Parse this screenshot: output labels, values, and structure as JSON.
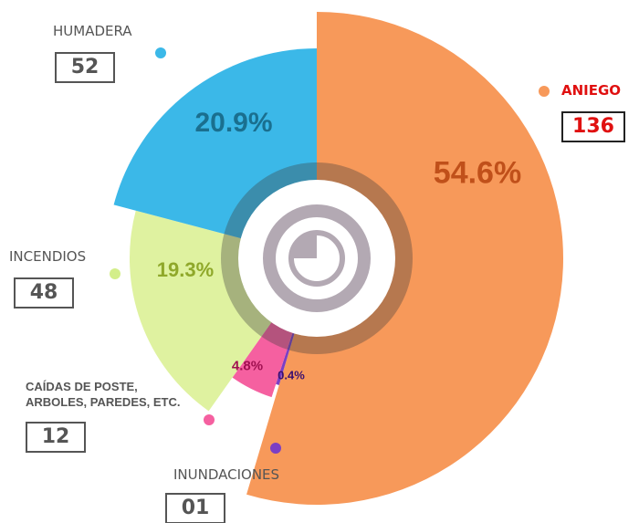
{
  "chart_data": {
    "type": "pie",
    "categories": [
      "ANIEGO",
      "INUNDACIONES",
      "CAÍDAS DE POSTE,\nARBOLES, PAREDES, ETC.",
      "INCENDIOS",
      "HUMADERA"
    ],
    "values": [
      54.6,
      0.4,
      4.8,
      19.3,
      20.9
    ],
    "value_labels": [
      "54.6%",
      "0.4%",
      "4.8%",
      "19.3%",
      "20.9%"
    ],
    "counts": [
      136,
      {
        "value": 1,
        "label": "01"
      },
      12,
      48,
      52
    ],
    "colors": [
      "#f7995a",
      "#7b3fc4",
      "#f560a0",
      "#dff2a0",
      "#3bb8e8"
    ]
  }
}
